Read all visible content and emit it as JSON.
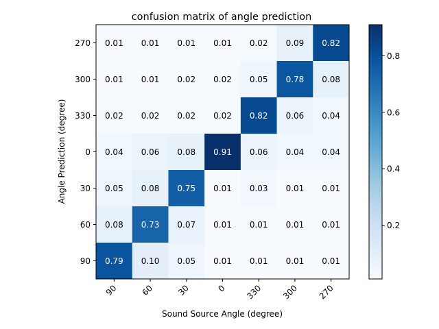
{
  "chart_data": {
    "type": "heatmap",
    "title": "confusion matrix of angle prediction",
    "xlabel": "Sound Source Angle (degree)",
    "ylabel": "Angle Prediction (degree)",
    "x_categories": [
      "90",
      "60",
      "30",
      "0",
      "330",
      "300",
      "270"
    ],
    "y_categories": [
      "270",
      "300",
      "330",
      "0",
      "30",
      "60",
      "90"
    ],
    "values": [
      [
        "0.01",
        "0.01",
        "0.01",
        "0.01",
        "0.02",
        "0.09",
        "0.82"
      ],
      [
        "0.01",
        "0.01",
        "0.02",
        "0.02",
        "0.05",
        "0.78",
        "0.08"
      ],
      [
        "0.02",
        "0.02",
        "0.02",
        "0.02",
        "0.82",
        "0.06",
        "0.04"
      ],
      [
        "0.04",
        "0.06",
        "0.08",
        "0.91",
        "0.06",
        "0.04",
        "0.04"
      ],
      [
        "0.05",
        "0.08",
        "0.75",
        "0.01",
        "0.03",
        "0.01",
        "0.01"
      ],
      [
        "0.08",
        "0.73",
        "0.07",
        "0.01",
        "0.01",
        "0.01",
        "0.01"
      ],
      [
        "0.79",
        "0.10",
        "0.05",
        "0.01",
        "0.01",
        "0.01",
        "0.01"
      ]
    ],
    "colormap": "Blues",
    "colorbar": {
      "range": [
        0.01,
        0.91
      ],
      "ticks": [
        "0.2",
        "0.4",
        "0.6",
        "0.8"
      ]
    }
  }
}
